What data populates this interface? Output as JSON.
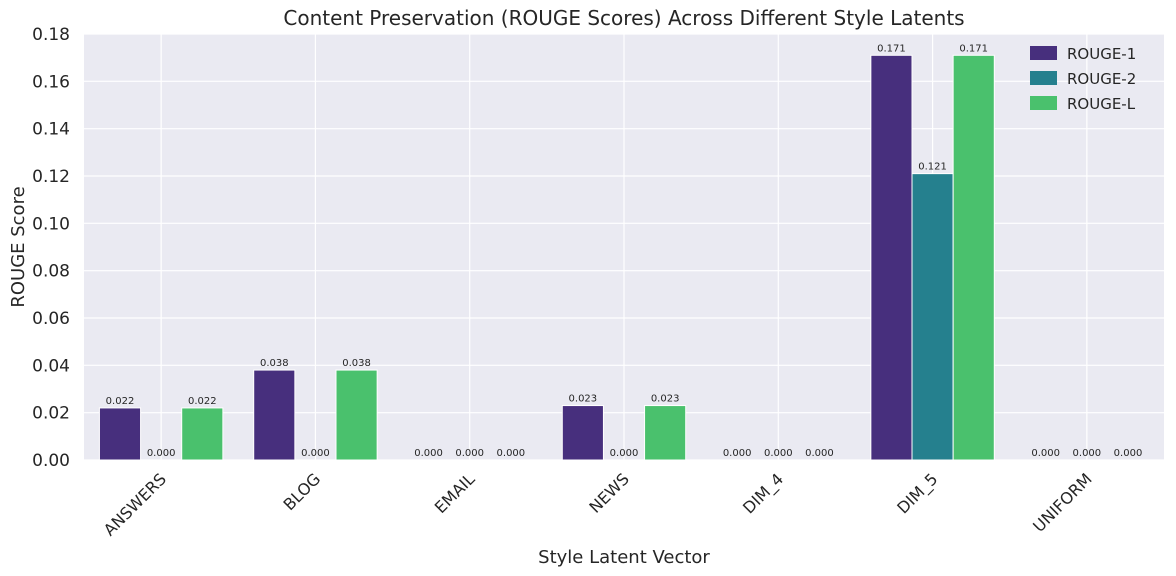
{
  "chart_data": {
    "type": "bar",
    "title": "Content Preservation (ROUGE Scores) Across Different Style Latents",
    "xlabel": "Style Latent Vector",
    "ylabel": "ROUGE Score",
    "categories": [
      "ANSWERS",
      "BLOG",
      "EMAIL",
      "NEWS",
      "DIM_4",
      "DIM_5",
      "UNIFORM"
    ],
    "ylim": [
      0,
      0.18
    ],
    "yticks": [
      "0.00",
      "0.02",
      "0.04",
      "0.06",
      "0.08",
      "0.10",
      "0.12",
      "0.14",
      "0.16",
      "0.18"
    ],
    "grid": true,
    "legend_position": "top-right",
    "series": [
      {
        "name": "ROUGE-1",
        "color": "#472f7d",
        "values": [
          0.022,
          0.038,
          0.0,
          0.023,
          0.0,
          0.171,
          0.0
        ],
        "labels": [
          "0.022",
          "0.038",
          "0.000",
          "0.023",
          "0.000",
          "0.171",
          "0.000"
        ]
      },
      {
        "name": "ROUGE-2",
        "color": "#25808e",
        "values": [
          0.0,
          0.0,
          0.0,
          0.0,
          0.0,
          0.121,
          0.0
        ],
        "labels": [
          "0.000",
          "0.000",
          "0.000",
          "0.000",
          "0.000",
          "0.121",
          "0.000"
        ]
      },
      {
        "name": "ROUGE-L",
        "color": "#4ac16d",
        "values": [
          0.022,
          0.038,
          0.0,
          0.023,
          0.0,
          0.171,
          0.0
        ],
        "labels": [
          "0.022",
          "0.038",
          "0.000",
          "0.023",
          "0.000",
          "0.171",
          "0.000"
        ]
      }
    ]
  }
}
